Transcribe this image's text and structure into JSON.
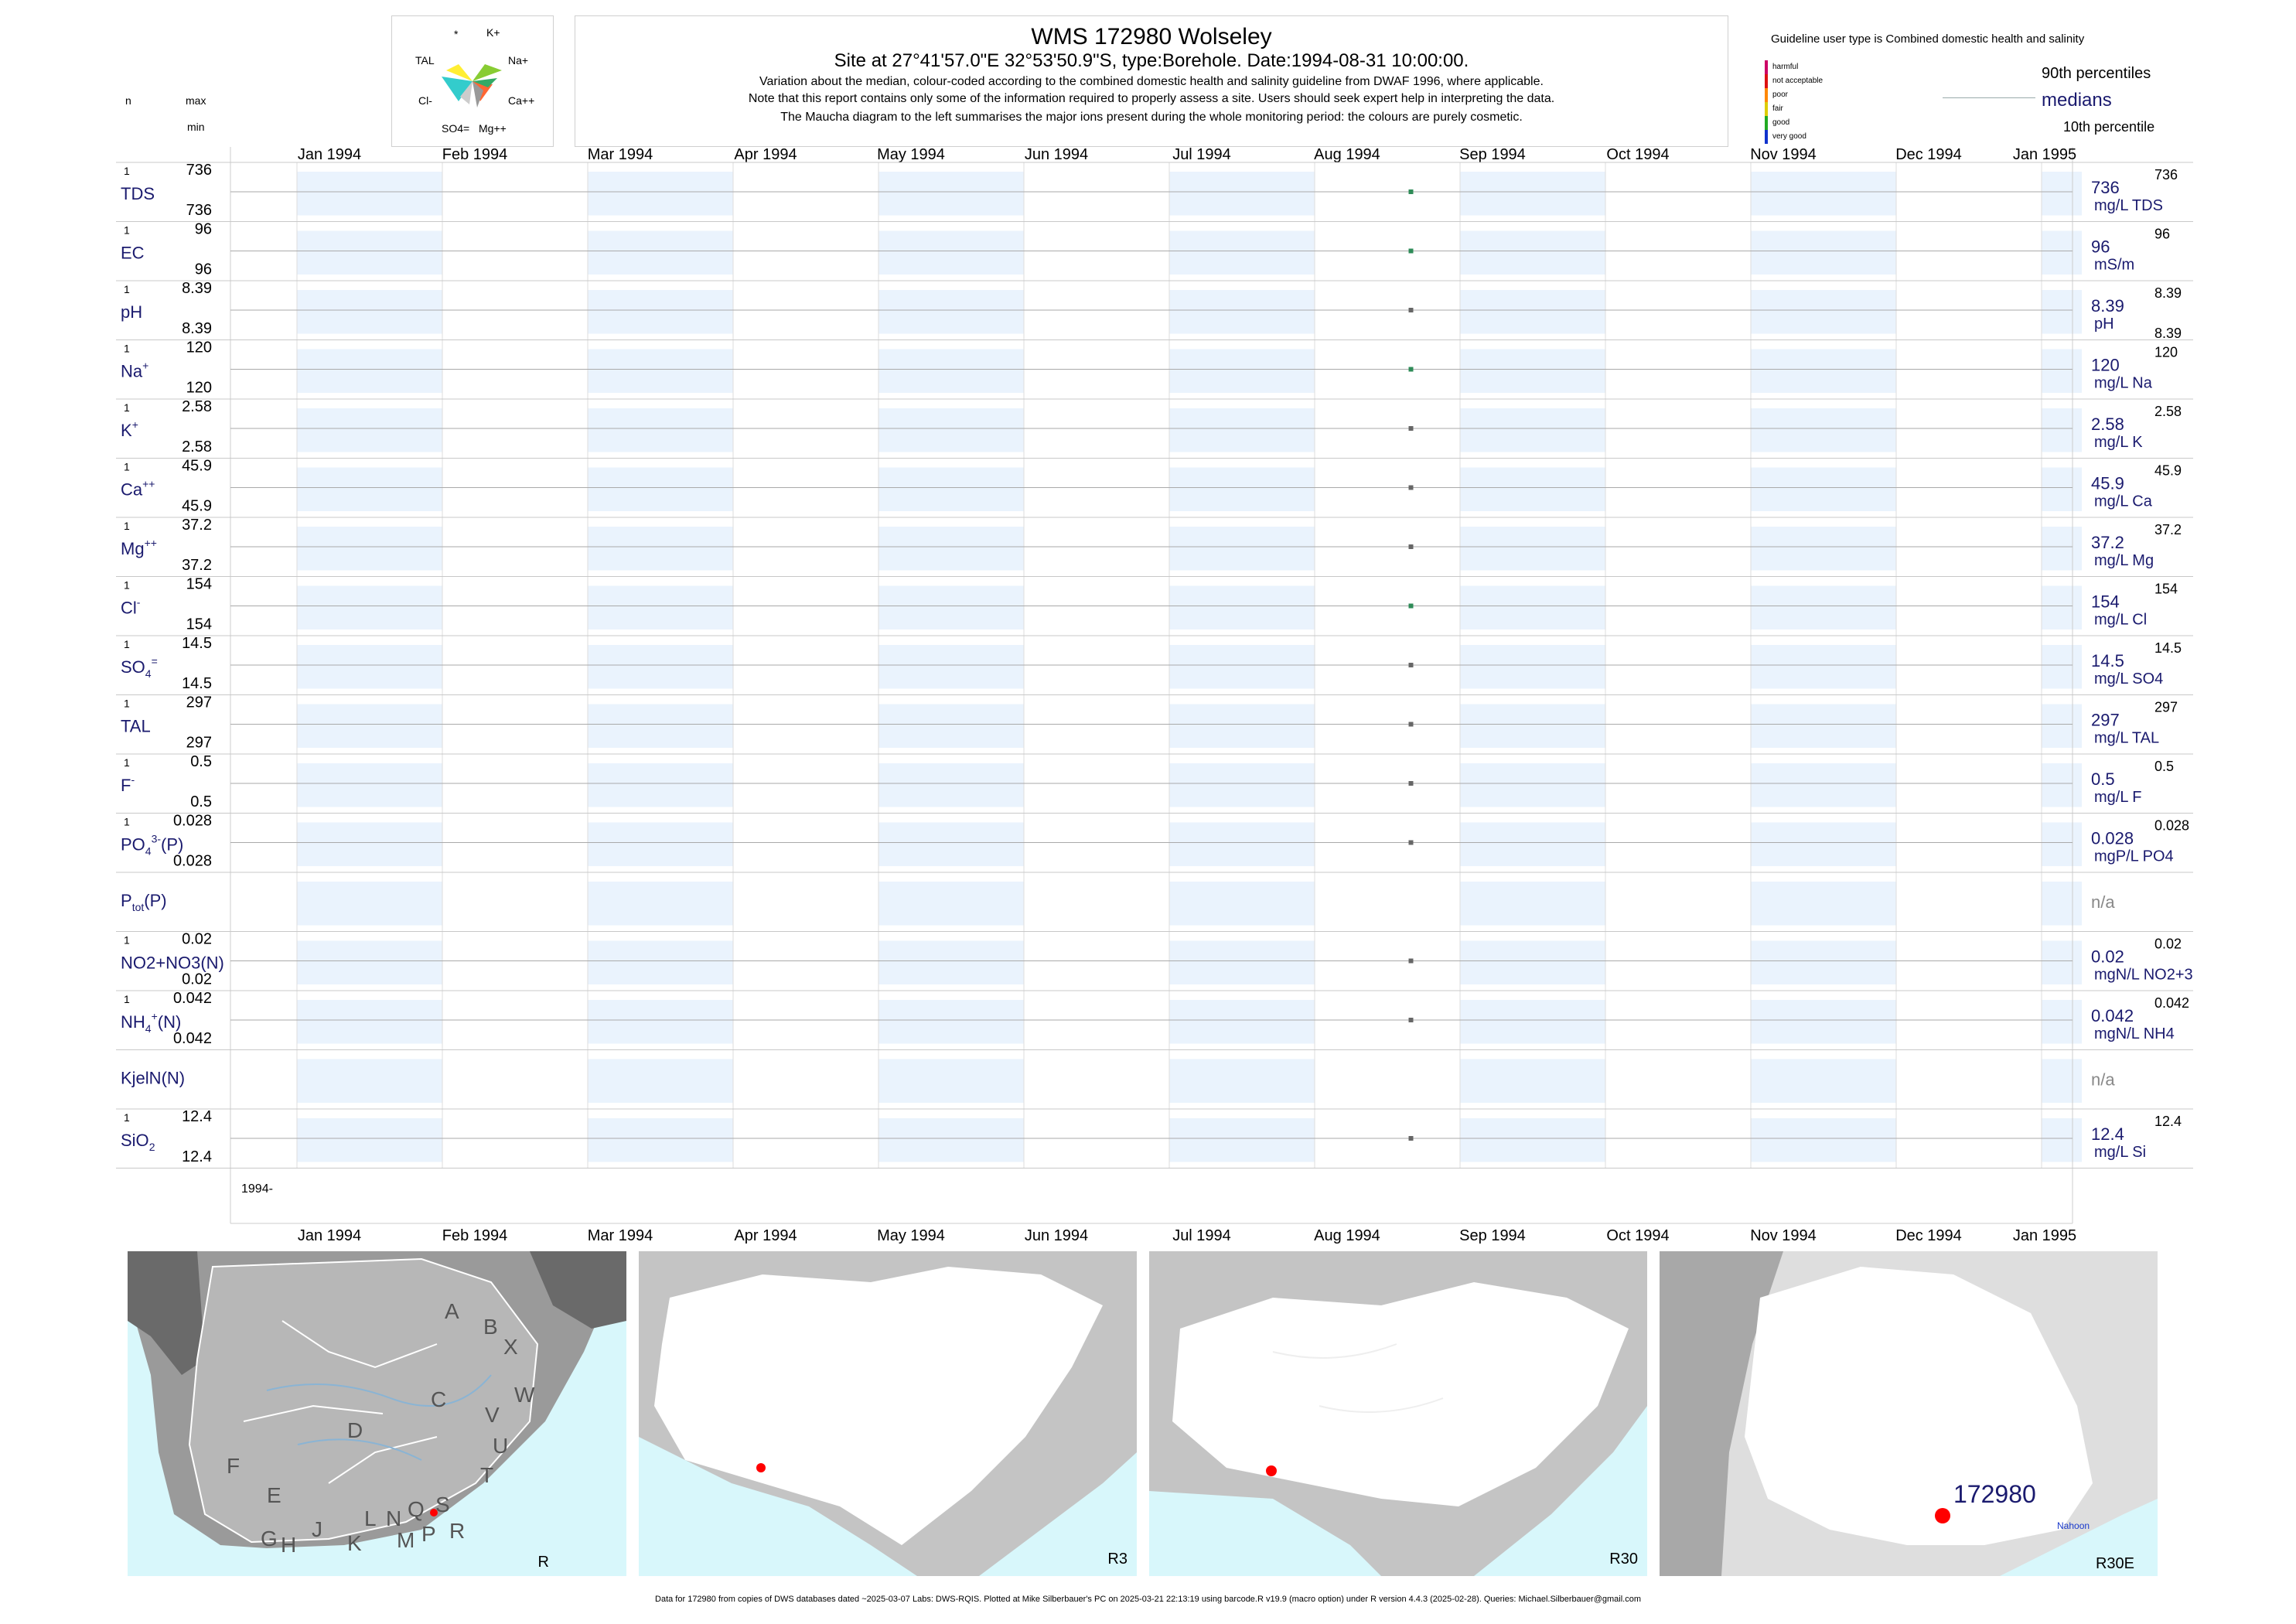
{
  "header": {
    "title": "WMS 172980  Wolseley",
    "subtitle": "Site at 27°41'57.0\"E 32°53'50.9\"S, type:Borehole. Date:1994-08-31 10:00:00.",
    "line1": "Variation about the median,  colour-coded according to the combined domestic health and salinity guideline from DWAF 1996, where applicable.",
    "line2": "Note that this report contains only some of the information required to properly assess a site. Users should seek expert help in interpreting the data.",
    "line3": "The Maucha diagram to the left summarises the major ions present during the whole monitoring period: the colours are purely cosmetic."
  },
  "maucha": {
    "labels": [
      "*",
      "K+",
      "TAL",
      "Na+",
      "Cl-",
      "Ca++",
      "SO4=",
      "Mg++"
    ]
  },
  "left_header": {
    "n": "n",
    "max": "max",
    "min": "min"
  },
  "legend": {
    "guideline_text": "Guideline user type is Combined domestic health and salinity",
    "categories": [
      {
        "label": "harmful",
        "color": "#cc0066"
      },
      {
        "label": "not acceptable",
        "color": "#dd1111"
      },
      {
        "label": "poor",
        "color": "#ff8800"
      },
      {
        "label": "fair",
        "color": "#ddcc00"
      },
      {
        "label": "good",
        "color": "#22aa22"
      },
      {
        "label": "very good",
        "color": "#1133cc"
      }
    ],
    "p90": "90th percentiles",
    "medians": "medians",
    "p10": "10th percentile"
  },
  "months": [
    "Jan 1994",
    "Feb 1994",
    "Mar 1994",
    "Apr 1994",
    "May 1994",
    "Jun 1994",
    "Jul 1994",
    "Aug 1994",
    "Sep 1994",
    "Oct 1994",
    "Nov 1994",
    "Dec 1994",
    "Jan 1995"
  ],
  "year_label": "1994-",
  "chart_data": {
    "type": "scatter",
    "x_range": [
      "1994-01-01",
      "1995-01-15"
    ],
    "sample_date": "1994-08-31",
    "series": [
      {
        "name": "TDS",
        "sup": "",
        "sub": "",
        "n": "1",
        "max": "736",
        "min": "736",
        "median": "736",
        "unit": "mg/L TDS",
        "p90": "736",
        "p10": "",
        "color": "#2e8b57"
      },
      {
        "name": "EC",
        "sup": "",
        "sub": "",
        "n": "1",
        "max": "96",
        "min": "96",
        "median": "96",
        "unit": "mS/m",
        "p90": "96",
        "p10": "",
        "color": "#2e8b57"
      },
      {
        "name": "pH",
        "sup": "",
        "sub": "",
        "n": "1",
        "max": "8.39",
        "min": "8.39",
        "median": "8.39",
        "unit": "pH",
        "p90": "8.39",
        "p10": "8.39",
        "color": "#666666"
      },
      {
        "name": "Na",
        "sup": "+",
        "sub": "",
        "n": "1",
        "max": "120",
        "min": "120",
        "median": "120",
        "unit": "mg/L Na",
        "p90": "120",
        "p10": "",
        "color": "#2e8b57"
      },
      {
        "name": "K",
        "sup": "+",
        "sub": "",
        "n": "1",
        "max": "2.58",
        "min": "2.58",
        "median": "2.58",
        "unit": "mg/L K",
        "p90": "2.58",
        "p10": "",
        "color": "#666666"
      },
      {
        "name": "Ca",
        "sup": "++",
        "sub": "",
        "n": "1",
        "max": "45.9",
        "min": "45.9",
        "median": "45.9",
        "unit": "mg/L Ca",
        "p90": "45.9",
        "p10": "",
        "color": "#666666"
      },
      {
        "name": "Mg",
        "sup": "++",
        "sub": "",
        "n": "1",
        "max": "37.2",
        "min": "37.2",
        "median": "37.2",
        "unit": "mg/L Mg",
        "p90": "37.2",
        "p10": "",
        "color": "#666666"
      },
      {
        "name": "Cl",
        "sup": "-",
        "sub": "",
        "n": "1",
        "max": "154",
        "min": "154",
        "median": "154",
        "unit": "mg/L Cl",
        "p90": "154",
        "p10": "",
        "color": "#2e8b57"
      },
      {
        "name": "SO",
        "sup": "=",
        "sub": "4",
        "n": "1",
        "max": "14.5",
        "min": "14.5",
        "median": "14.5",
        "unit": "mg/L SO4",
        "p90": "14.5",
        "p10": "",
        "color": "#666666"
      },
      {
        "name": "TAL",
        "sup": "",
        "sub": "",
        "n": "1",
        "max": "297",
        "min": "297",
        "median": "297",
        "unit": "mg/L TAL",
        "p90": "297",
        "p10": "",
        "color": "#666666"
      },
      {
        "name": "F",
        "sup": "-",
        "sub": "",
        "n": "1",
        "max": "0.5",
        "min": "0.5",
        "median": "0.5",
        "unit": "mg/L F",
        "p90": "0.5",
        "p10": "",
        "color": "#666666"
      },
      {
        "name": "PO",
        "sup": "3-",
        "sub": "4",
        "suffix": "(P)",
        "n": "1",
        "max": "0.028",
        "min": "0.028",
        "median": "0.028",
        "unit": "mgP/L PO4",
        "p90": "0.028",
        "p10": "",
        "color": "#666666"
      },
      {
        "name": "P",
        "sup": "",
        "sub": "tot",
        "suffix": "(P)",
        "n": "",
        "max": "",
        "min": "",
        "median": "n/a",
        "unit": "",
        "p90": "",
        "p10": "",
        "color": ""
      },
      {
        "name": "NO2+NO3(N)",
        "display": "NO2+NO3(N)",
        "n": "1",
        "max": "0.02",
        "min": "0.02",
        "median": "0.02",
        "unit": "mgN/L NO2+3",
        "p90": "0.02",
        "p10": "",
        "color": "#666666"
      },
      {
        "name": "NH",
        "sup": "+",
        "sub": "4",
        "suffix": "(N)",
        "n": "1",
        "max": "0.042",
        "min": "0.042",
        "median": "0.042",
        "unit": "mgN/L NH4",
        "p90": "0.042",
        "p10": "",
        "color": "#666666"
      },
      {
        "name": "KjelN(N)",
        "sup": "",
        "sub": "",
        "n": "",
        "max": "",
        "min": "",
        "median": "n/a",
        "unit": "",
        "p90": "",
        "p10": "",
        "color": ""
      },
      {
        "name": "SiO",
        "sup": "",
        "sub": "2",
        "n": "1",
        "max": "12.4",
        "min": "12.4",
        "median": "12.4",
        "unit": "mg/L Si",
        "p90": "12.4",
        "p10": "",
        "color": "#666666"
      }
    ]
  },
  "maps": [
    {
      "label": "R",
      "letters": [
        "A",
        "B",
        "X",
        "W",
        "C",
        "V",
        "U",
        "D",
        "T",
        "F",
        "E",
        "G",
        "H",
        "J",
        "K",
        "L",
        "N",
        "Q",
        "M",
        "P",
        "S",
        "R"
      ]
    },
    {
      "label": "R3"
    },
    {
      "label": "R30"
    },
    {
      "label": "R30E",
      "site_label": "172980",
      "place": "Nahoon"
    }
  ],
  "footer": "Data for 172980 from copies of DWS databases dated ~2025-03-07 Labs: DWS-RQIS. Plotted at Mike Silberbauer's PC on 2025-03-21 22:13:19 using barcode.R v19.9 (macro option) under R version 4.4.3 (2025-02-28). Queries: Michael.Silberbauer@gmail.com"
}
